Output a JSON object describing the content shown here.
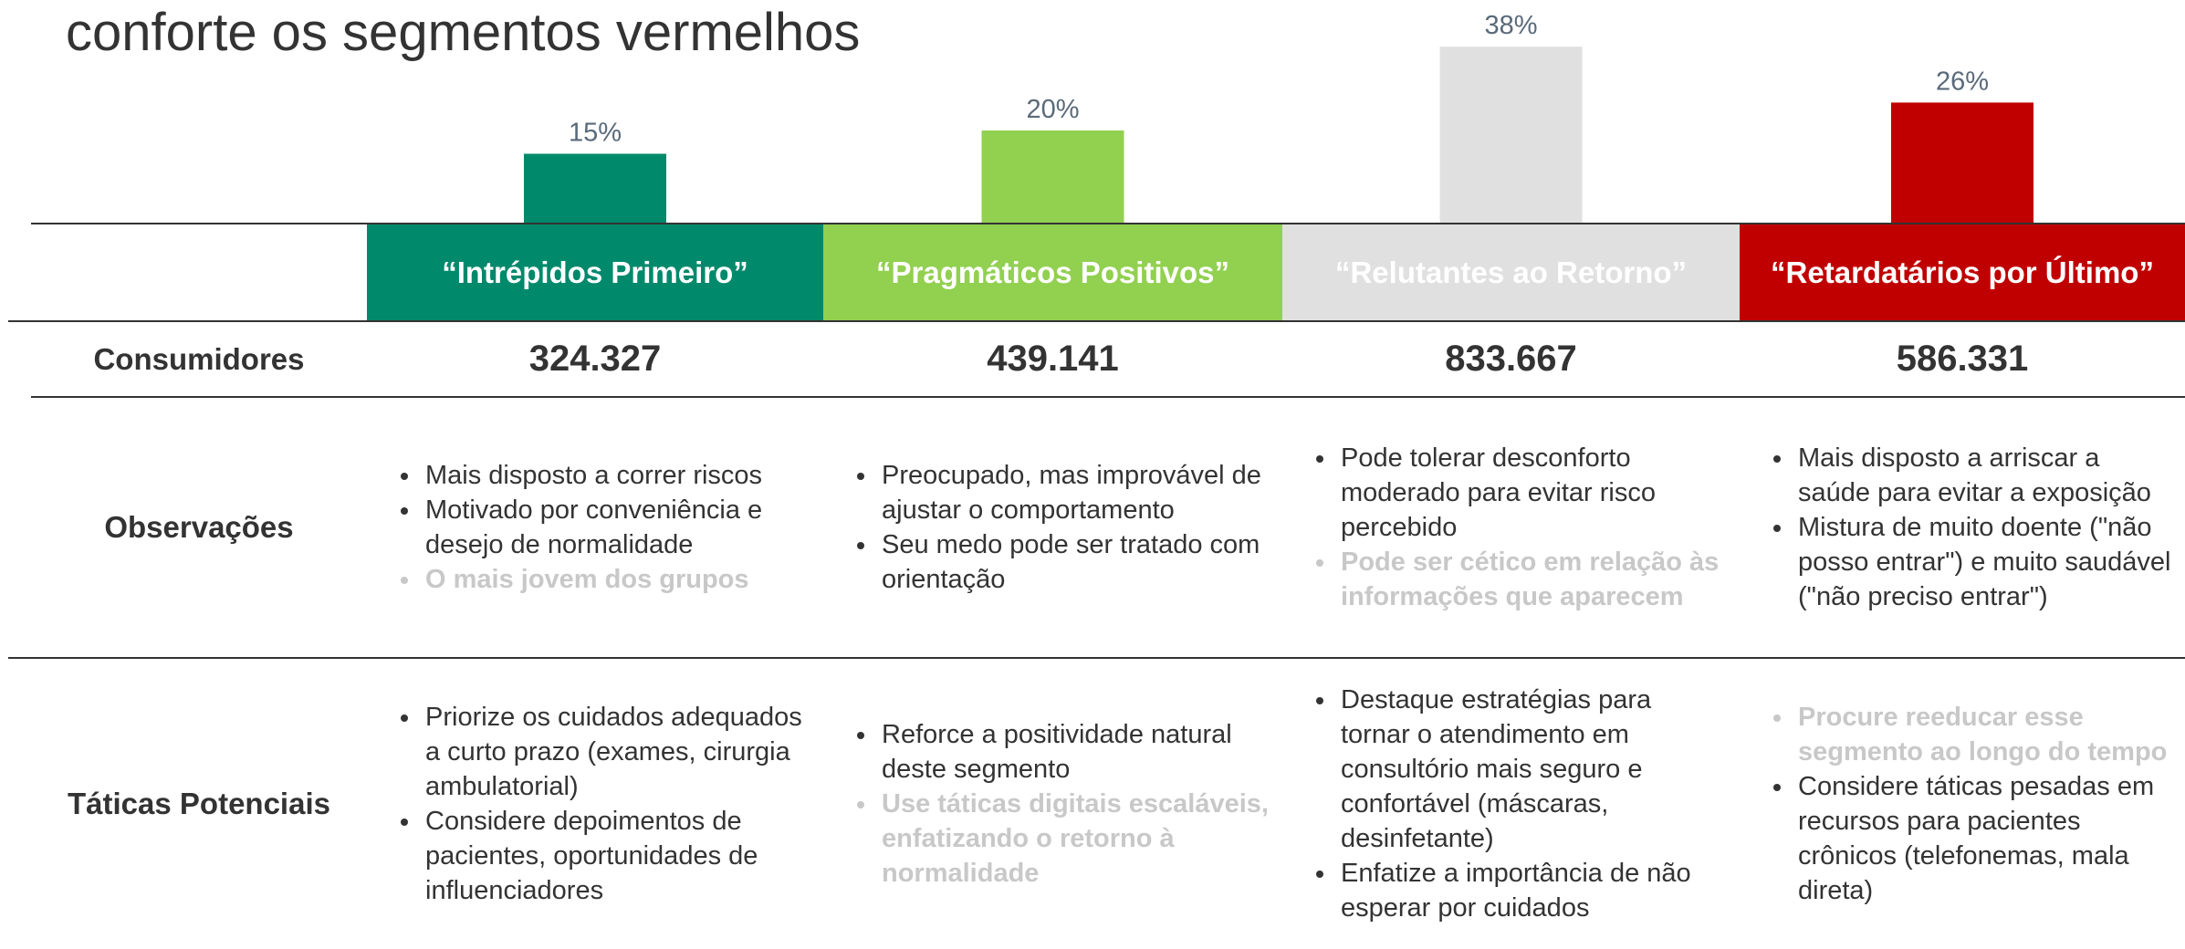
{
  "title": "conforte os segmentos vermelhos",
  "chart_data": {
    "type": "bar",
    "categories": [
      "“Intrépidos Primeiro”",
      "“Pragmáticos Positivos”",
      "“Relutantes ao Retorno”",
      "“Retardatários por Último”"
    ],
    "values": [
      15,
      20,
      38,
      26
    ],
    "value_labels": [
      "15%",
      "20%",
      "38%",
      "26%"
    ],
    "colors": [
      "#00896b",
      "#92d050",
      "#e0e0e0",
      "#c00000"
    ]
  },
  "table": {
    "rows": [
      {
        "label": "Consumidores",
        "cells": [
          "324.327",
          "439.141",
          "833.667",
          "586.331"
        ]
      },
      {
        "label": "Observações",
        "cells": [
          [
            {
              "text": "Mais disposto a correr riscos",
              "color": "#333333",
              "bold": false
            },
            {
              "text": "Motivado por conveniência e desejo de normalidade",
              "color": "#333333",
              "bold": false
            },
            {
              "text": "O mais jovem dos grupos",
              "color": "#c8c8c8",
              "bold": true
            }
          ],
          [
            {
              "text": "Preocupado, mas improvável de ajustar o comportamento",
              "color": "#333333",
              "bold": false
            },
            {
              "text": "Seu medo pode ser tratado com orientação",
              "color": "#333333",
              "bold": false
            }
          ],
          [
            {
              "text": "Pode tolerar desconforto moderado para evitar risco percebido",
              "color": "#333333",
              "bold": false
            },
            {
              "text": "Pode ser cético em relação às informações que aparecem",
              "color": "#c8c8c8",
              "bold": true
            }
          ],
          [
            {
              "text": "Mais disposto a arriscar a saúde para evitar a exposição",
              "color": "#333333",
              "bold": false
            },
            {
              "text": "Mistura de muito doente (\"não posso entrar\") e muito saudável (\"não preciso entrar\")",
              "color": "#333333",
              "bold": false
            }
          ]
        ]
      },
      {
        "label": "Táticas Potenciais",
        "cells": [
          [
            {
              "text": "Priorize os cuidados adequados a curto prazo (exames, cirurgia ambulatorial)",
              "color": "#333333",
              "bold": false
            },
            {
              "text": "Considere depoimentos de pacientes, oportunidades de influenciadores",
              "color": "#333333",
              "bold": false
            }
          ],
          [
            {
              "text": "Reforce a positividade natural deste segmento",
              "color": "#333333",
              "bold": false
            },
            {
              "text": "Use táticas digitais escaláveis, enfatizando o retorno à normalidade",
              "color": "#c8c8c8",
              "bold": true
            }
          ],
          [
            {
              "text": "Destaque estratégias para tornar o atendimento em consultório mais seguro e confortável (máscaras, desinfetante)",
              "color": "#333333",
              "bold": false
            },
            {
              "text": "Enfatize a importância de não esperar por cuidados",
              "color": "#333333",
              "bold": false
            }
          ],
          [
            {
              "text": "Procure reeducar esse segmento ao longo do tempo",
              "color": "#c8c8c8",
              "bold": true
            },
            {
              "text": "Considere táticas pesadas em recursos para pacientes crônicos (telefonemas, mala direta)",
              "color": "#333333",
              "bold": false
            }
          ]
        ]
      }
    ]
  }
}
